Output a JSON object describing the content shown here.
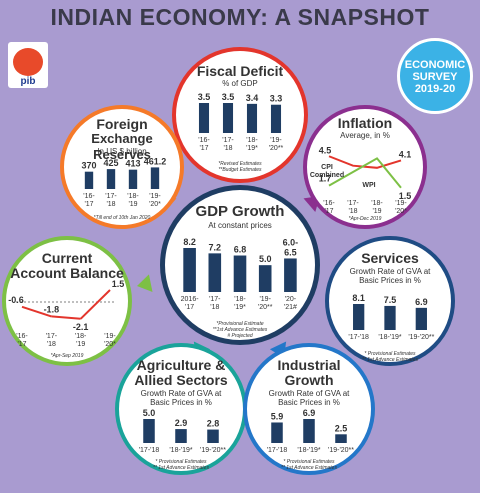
{
  "title": "INDIAN ECONOMY: A SNAPSHOT",
  "logo_text": "pib",
  "survey_lines": [
    "ECONOMIC",
    "SURVEY",
    "2019-20"
  ],
  "colors": {
    "bar": "#1f3d63",
    "text": "#333333",
    "background": "#a99bd0"
  },
  "panels": {
    "fiscal": {
      "title": "Fiscal Deficit",
      "sub": "% of GDP",
      "notes": [
        "*Revised Estimates",
        "**Budget Estimates"
      ],
      "ring": "#e3352c"
    },
    "forex": {
      "title_lines": [
        "Foreign",
        "Exchange Reserves"
      ],
      "sub": "In US $ billion",
      "notes": [
        "*Till end of 10th Jan 2020"
      ],
      "ring": "#f57a29"
    },
    "inflation": {
      "title": "Inflation",
      "sub": "Average, in %",
      "notes": [
        "*Apr-Dec 2019"
      ],
      "ring": "#8b2f8f"
    },
    "gdp": {
      "title": "GDP Growth",
      "sub": "At constant prices",
      "notes": [
        "*Provisional Estimate",
        "**1st Advance Estimates",
        "# Projected"
      ],
      "ring": "#1f3d63"
    },
    "current": {
      "title_lines": [
        "Current",
        "Account Balance"
      ],
      "notes": [
        "*Apr-Sep 2019"
      ],
      "ring": "#7dc045"
    },
    "services": {
      "title": "Services",
      "sub_lines": [
        "Growth Rate of GVA at",
        "Basic Prices in %"
      ],
      "notes": [
        "* Provisional Estimates",
        "** 1st Advance Estimates"
      ],
      "ring": "#1f4c84"
    },
    "agriculture": {
      "title_lines": [
        "Agriculture &",
        "Allied Sectors"
      ],
      "sub_lines": [
        "Growth Rate of GVA at",
        "Basic Prices in %"
      ],
      "notes": [
        "* Provisional Estimates",
        "** 1st Advance Estimates"
      ],
      "ring": "#1aa39a"
    },
    "industrial": {
      "title_lines": [
        "Industrial",
        "Growth"
      ],
      "sub_lines": [
        "Growth Rate of GVA at",
        "Basic Prices in %"
      ],
      "notes": [
        "* Provisional Estimates",
        "** 1st Advance Estimates"
      ],
      "ring": "#2477c9"
    }
  },
  "chart_data": [
    {
      "id": "fiscal",
      "type": "bar",
      "categories": [
        "'16-\n'17",
        "'17-\n'18",
        "'18-\n'19*",
        "'19-\n'20**"
      ],
      "values": [
        3.5,
        3.5,
        3.4,
        3.3
      ],
      "labels": [
        "3.5",
        "3.5",
        "3.4",
        "3.3"
      ],
      "ylim": [
        0,
        3.5
      ]
    },
    {
      "id": "forex",
      "type": "bar",
      "categories": [
        "'16-\n'17",
        "'17-\n'18",
        "'18-\n'19",
        "'19-\n'20*"
      ],
      "values": [
        370,
        425,
        413,
        461.2
      ],
      "labels": [
        "370",
        "425",
        "413",
        "461.2"
      ],
      "ylim": [
        0,
        470
      ]
    },
    {
      "id": "inflation",
      "type": "line",
      "categories": [
        "'16-\n'17",
        "'17-\n'18",
        "'18-\n'19",
        "'19-\n'20*"
      ],
      "series": [
        {
          "name": "CPI Combined",
          "values": [
            4.5,
            3.6,
            3.4,
            4.1
          ],
          "labels": [
            "4.5",
            "",
            "",
            "4.1"
          ],
          "color": "#e3352c"
        },
        {
          "name": "WPI",
          "values": [
            1.7,
            3.0,
            4.3,
            1.5
          ],
          "labels": [
            "1.7",
            "",
            "",
            "1.5"
          ],
          "color": "#7dc045"
        }
      ],
      "ylim": [
        1,
        5
      ]
    },
    {
      "id": "gdp",
      "type": "bar",
      "categories": [
        "2016-\n'17",
        "'17-\n'18",
        "'18-\n'19*",
        "'19-\n'20**",
        "'20-\n'21#"
      ],
      "values": [
        8.2,
        7.2,
        6.8,
        5.0,
        6.25
      ],
      "labels": [
        "8.2",
        "7.2",
        "6.8",
        "5.0",
        "6.0-\n6.5"
      ],
      "ylim": [
        0,
        8.2
      ]
    },
    {
      "id": "current",
      "type": "line",
      "categories": [
        "'16-\n'17",
        "'17-\n'18",
        "'18-\n'19",
        "'19-\n'20*"
      ],
      "values": [
        -0.6,
        -1.8,
        -2.1,
        1.5
      ],
      "labels": [
        "-0.6",
        "-1.8",
        "-2.1",
        "1.5"
      ],
      "ylim": [
        -2.5,
        2
      ]
    },
    {
      "id": "services",
      "type": "bar",
      "categories": [
        "'17-'18",
        "'18-'19*",
        "'19-'20**"
      ],
      "values": [
        8.1,
        7.5,
        6.9
      ],
      "labels": [
        "8.1",
        "7.5",
        "6.9"
      ],
      "ylim": [
        0,
        8.1
      ]
    },
    {
      "id": "agriculture",
      "type": "bar",
      "categories": [
        "'17-'18",
        "'18-'19*",
        "'19-'20**"
      ],
      "values": [
        5.0,
        2.9,
        2.8
      ],
      "labels": [
        "5.0",
        "2.9",
        "2.8"
      ],
      "ylim": [
        0,
        5
      ]
    },
    {
      "id": "industrial",
      "type": "bar",
      "categories": [
        "'17-'18",
        "'18-'19*",
        "'19-'20**"
      ],
      "values": [
        5.9,
        6.9,
        2.5
      ],
      "labels": [
        "5.9",
        "6.9",
        "2.5"
      ],
      "ylim": [
        0,
        6.9
      ]
    }
  ]
}
